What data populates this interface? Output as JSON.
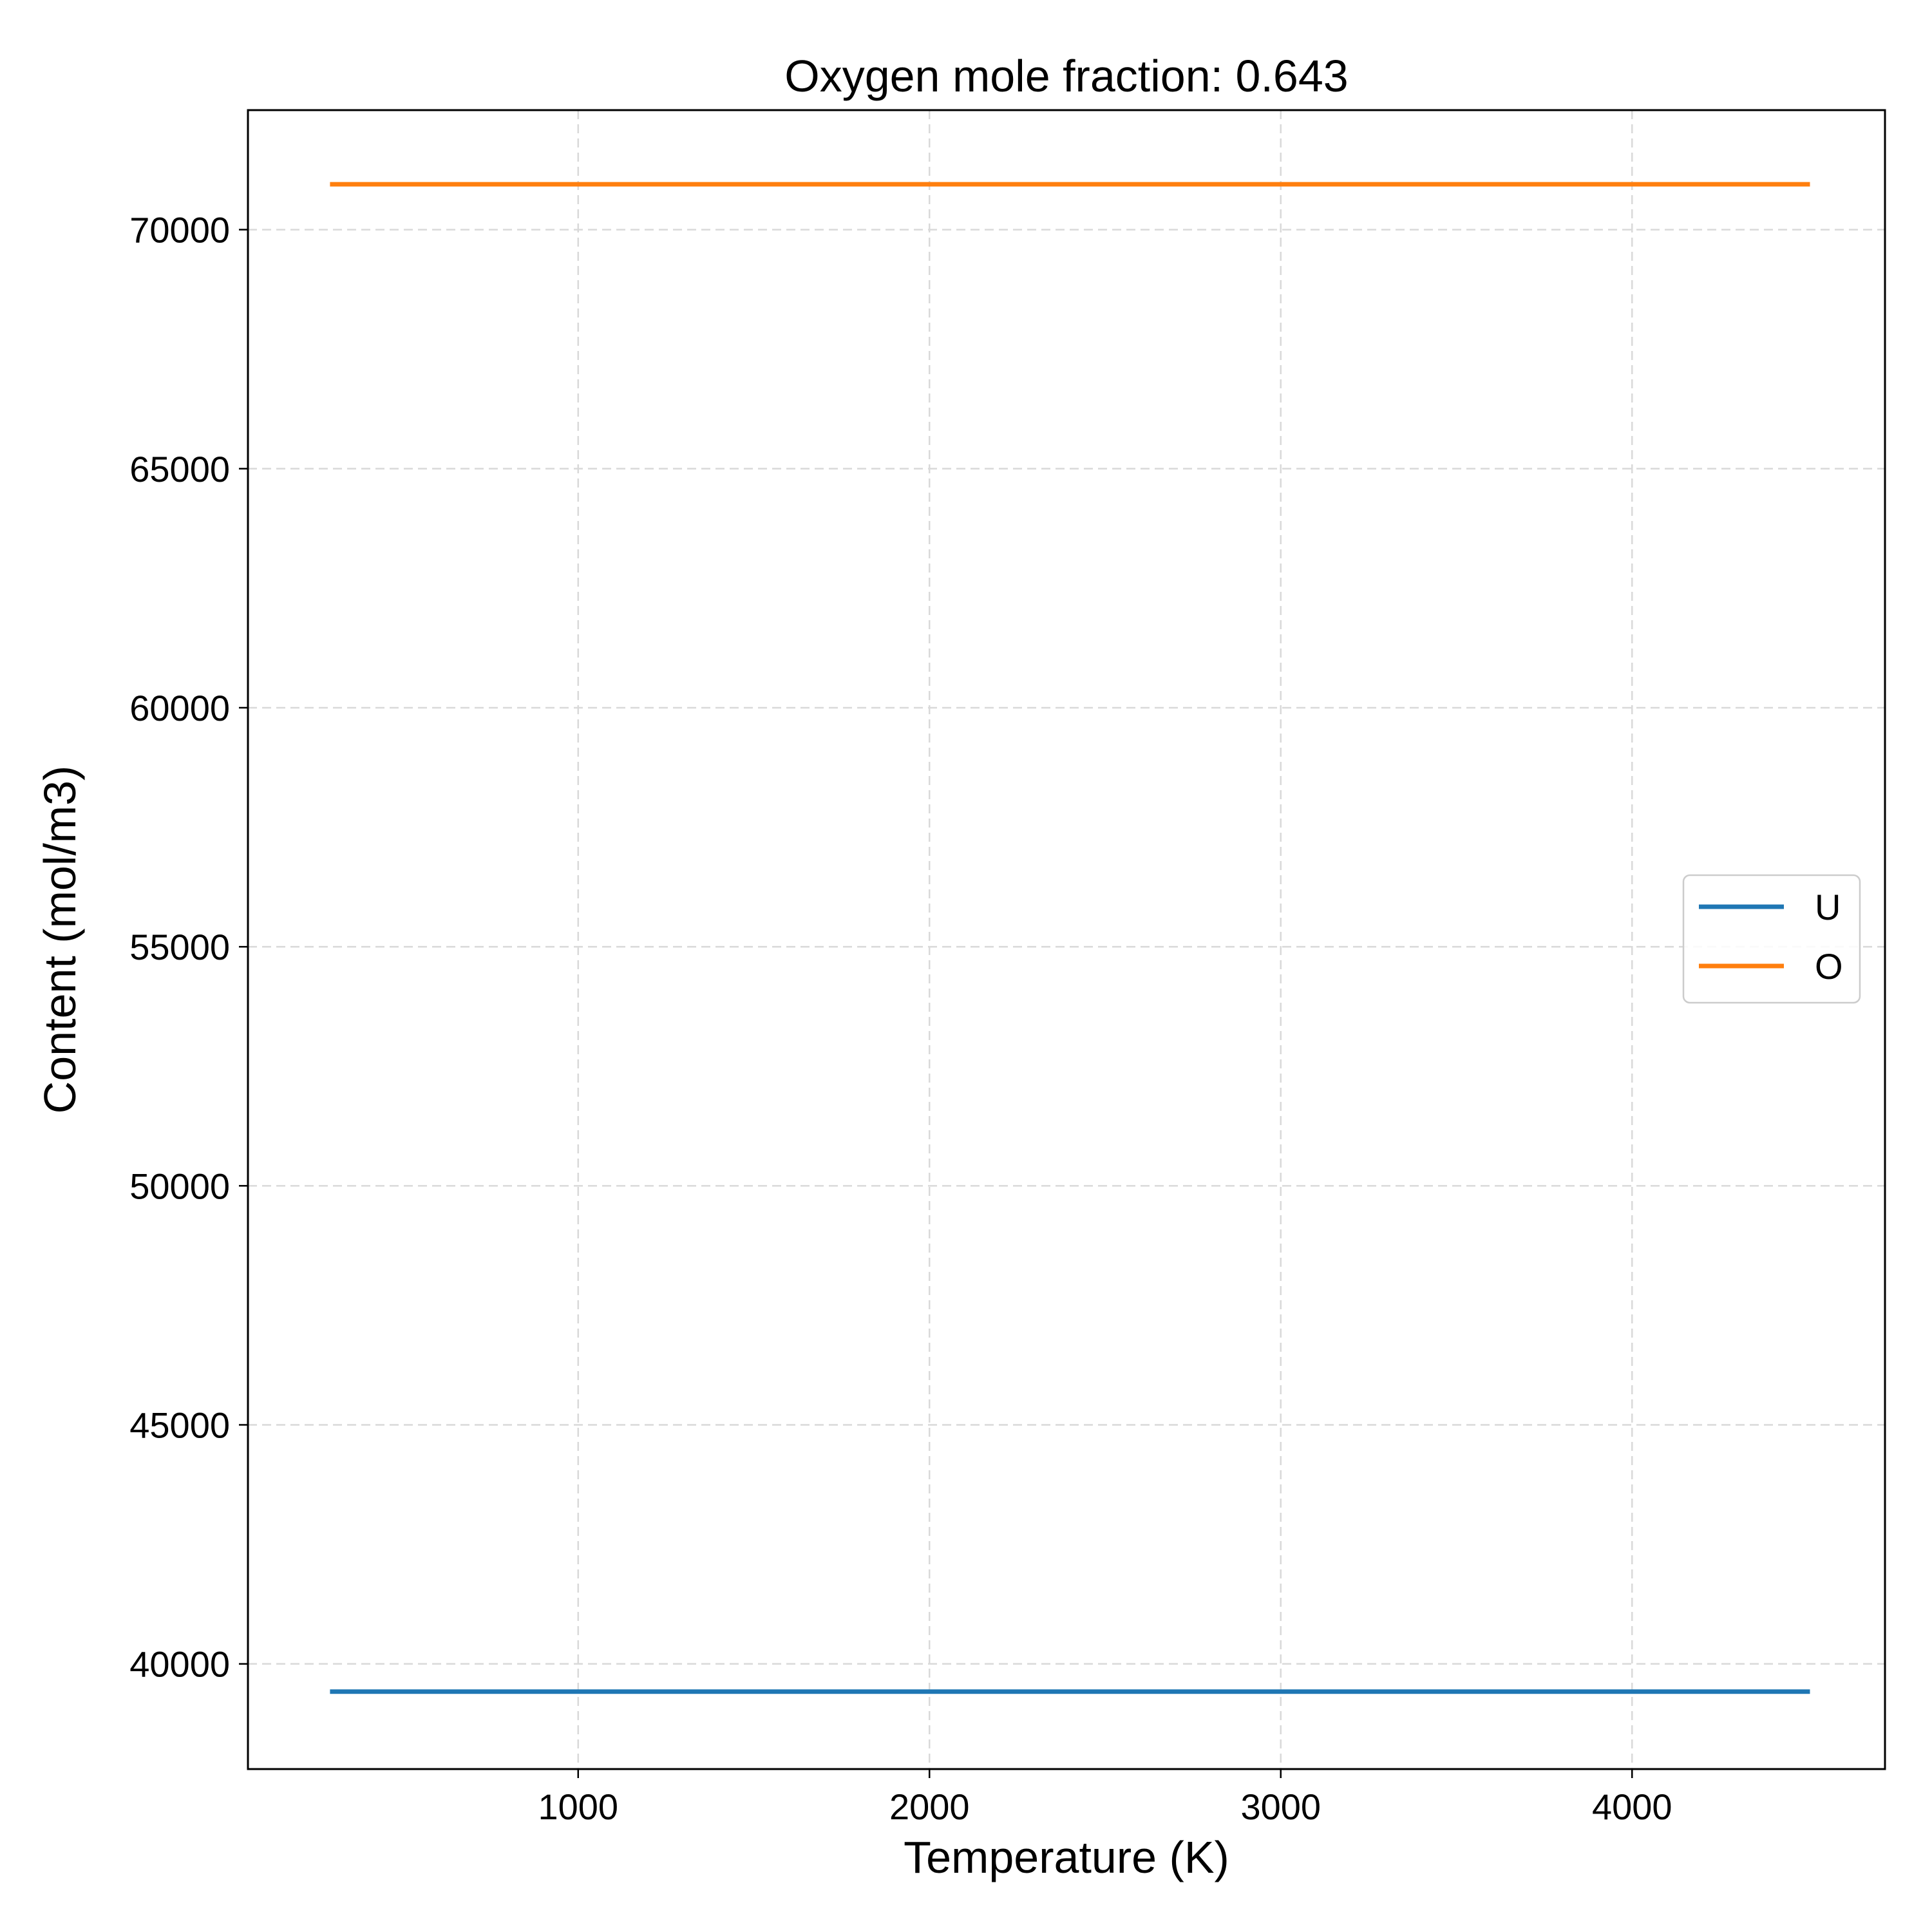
{
  "chart_data": {
    "type": "line",
    "title": "Oxygen mole fraction: 0.643",
    "xlabel": "Temperature (K)",
    "ylabel": "Content (mol/m3)",
    "xlim": [
      60,
      4720
    ],
    "ylim": [
      37800,
      72500
    ],
    "x_ticks": [
      1000,
      2000,
      3000,
      4000
    ],
    "y_ticks": [
      40000,
      45000,
      50000,
      55000,
      60000,
      65000,
      70000
    ],
    "x_tick_labels": [
      "1000",
      "2000",
      "3000",
      "4000"
    ],
    "y_tick_labels": [
      "40000",
      "45000",
      "50000",
      "55000",
      "60000",
      "65000",
      "70000"
    ],
    "grid": true,
    "legend_position": "center-right",
    "series": [
      {
        "name": "U",
        "color": "#1f77b4",
        "x": [
          300,
          4500
        ],
        "y": [
          39420,
          39420
        ]
      },
      {
        "name": "O",
        "color": "#ff7f0e",
        "x": [
          300,
          4500
        ],
        "y": [
          70950,
          70950
        ]
      }
    ]
  }
}
